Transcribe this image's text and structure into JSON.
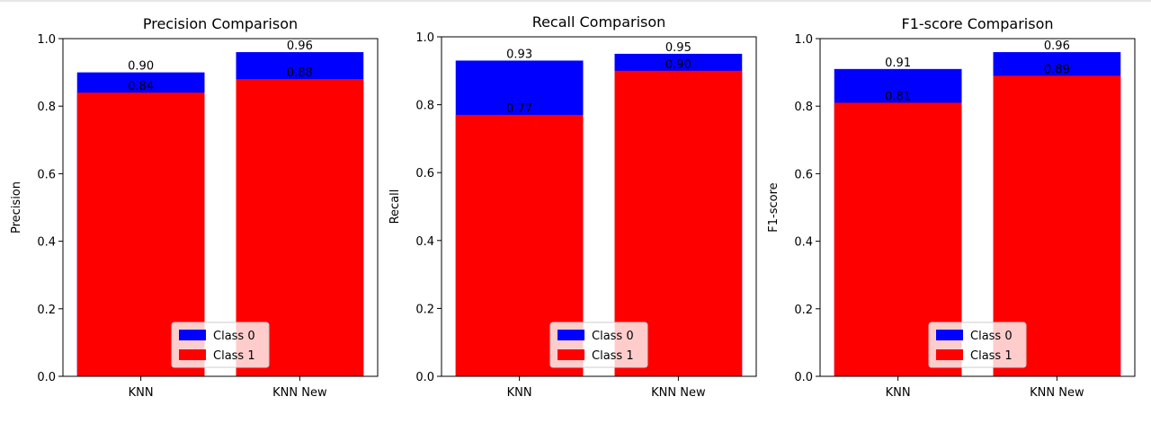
{
  "chart_data": [
    {
      "type": "bar",
      "title": "Precision Comparison",
      "ylabel": "Precision",
      "xlabel": "",
      "ylim": [
        0,
        1.0
      ],
      "yticks": [
        "0.0",
        "0.2",
        "0.4",
        "0.6",
        "0.8",
        "1.0"
      ],
      "categories": [
        "KNN",
        "KNN New"
      ],
      "series": [
        {
          "name": "Class 0",
          "values": [
            0.9,
            0.96
          ],
          "labels": [
            "0.90",
            "0.96"
          ]
        },
        {
          "name": "Class 1",
          "values": [
            0.84,
            0.88
          ],
          "labels": [
            "0.84",
            "0.88"
          ]
        }
      ],
      "legend": "lower center"
    },
    {
      "type": "bar",
      "title": "Recall Comparison",
      "ylabel": "Recall",
      "xlabel": "",
      "ylim": [
        0,
        1.0
      ],
      "yticks": [
        "0.0",
        "0.2",
        "0.4",
        "0.6",
        "0.8",
        "1.0"
      ],
      "categories": [
        "KNN",
        "KNN New"
      ],
      "series": [
        {
          "name": "Class 0",
          "values": [
            0.93,
            0.95
          ],
          "labels": [
            "0.93",
            "0.95"
          ]
        },
        {
          "name": "Class 1",
          "values": [
            0.77,
            0.9
          ],
          "labels": [
            "0.77",
            "0.90"
          ]
        }
      ],
      "legend": "lower center"
    },
    {
      "type": "bar",
      "title": "F1-score Comparison",
      "ylabel": "F1-score",
      "xlabel": "",
      "ylim": [
        0,
        1.0
      ],
      "yticks": [
        "0.0",
        "0.2",
        "0.4",
        "0.6",
        "0.8",
        "1.0"
      ],
      "categories": [
        "KNN",
        "KNN New"
      ],
      "series": [
        {
          "name": "Class 0",
          "values": [
            0.91,
            0.96
          ],
          "labels": [
            "0.91",
            "0.96"
          ]
        },
        {
          "name": "Class 1",
          "values": [
            0.81,
            0.89
          ],
          "labels": [
            "0.81",
            "0.89"
          ]
        }
      ],
      "legend": "lower center"
    }
  ],
  "colors": {
    "class0": "#0000ff",
    "class1": "#ff0000"
  }
}
